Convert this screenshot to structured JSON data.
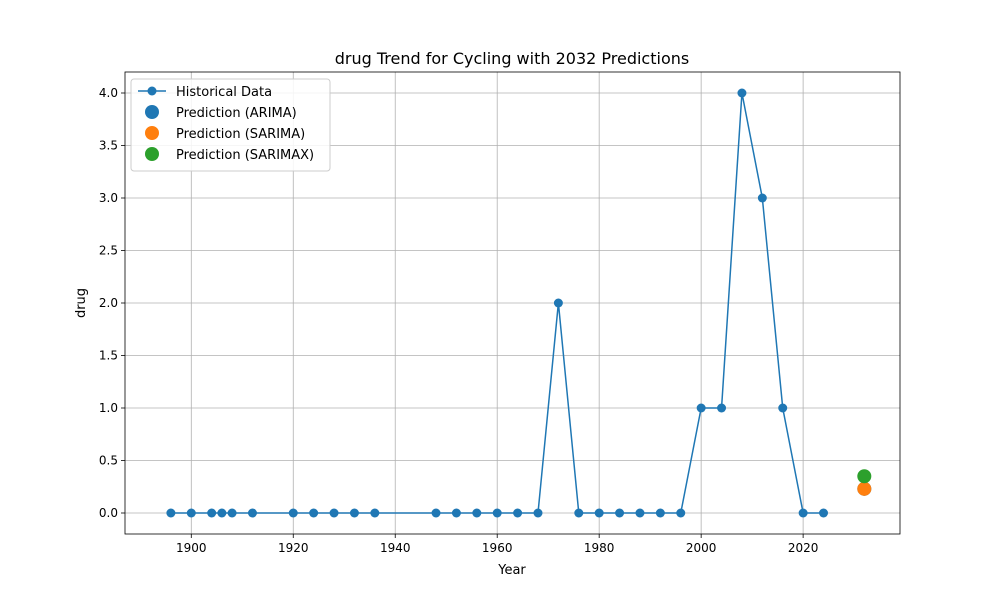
{
  "chart_data": {
    "type": "line",
    "title": "drug Trend for Cycling with 2032 Predictions",
    "xlabel": "Year",
    "ylabel": "drug",
    "xlim": [
      1887,
      2039
    ],
    "ylim": [
      -0.2,
      4.2
    ],
    "xticks": [
      1900,
      1920,
      1940,
      1960,
      1980,
      2000,
      2020
    ],
    "xtick_labels": [
      "1900",
      "1920",
      "1940",
      "1960",
      "1980",
      "2000",
      "2020"
    ],
    "yticks": [
      0.0,
      0.5,
      1.0,
      1.5,
      2.0,
      2.5,
      3.0,
      3.5,
      4.0
    ],
    "ytick_labels": [
      "0.0",
      "0.5",
      "1.0",
      "1.5",
      "2.0",
      "2.5",
      "3.0",
      "3.5",
      "4.0"
    ],
    "grid": true,
    "legend_position": "top-left",
    "series": [
      {
        "name": "Historical Data",
        "kind": "line",
        "color": "#1f77b4",
        "x": [
          1896,
          1900,
          1904,
          1906,
          1908,
          1912,
          1920,
          1924,
          1928,
          1932,
          1936,
          1948,
          1952,
          1956,
          1960,
          1964,
          1968,
          1972,
          1976,
          1980,
          1984,
          1988,
          1992,
          1996,
          2000,
          2004,
          2008,
          2012,
          2016,
          2020,
          2024
        ],
        "y": [
          0,
          0,
          0,
          0,
          0,
          0,
          0,
          0,
          0,
          0,
          0,
          0,
          0,
          0,
          0,
          0,
          0,
          2,
          0,
          0,
          0,
          0,
          0,
          0,
          1,
          1,
          4,
          3,
          1,
          0,
          0
        ]
      },
      {
        "name": "Prediction (ARIMA)",
        "kind": "point",
        "color": "#1f77b4",
        "x": [
          2032
        ],
        "y": [
          0.23
        ]
      },
      {
        "name": "Prediction (SARIMA)",
        "kind": "point",
        "color": "#ff7f0e",
        "x": [
          2032
        ],
        "y": [
          0.23
        ]
      },
      {
        "name": "Prediction (SARIMAX)",
        "kind": "point",
        "color": "#2ca02c",
        "x": [
          2032
        ],
        "y": [
          0.35
        ]
      }
    ]
  }
}
